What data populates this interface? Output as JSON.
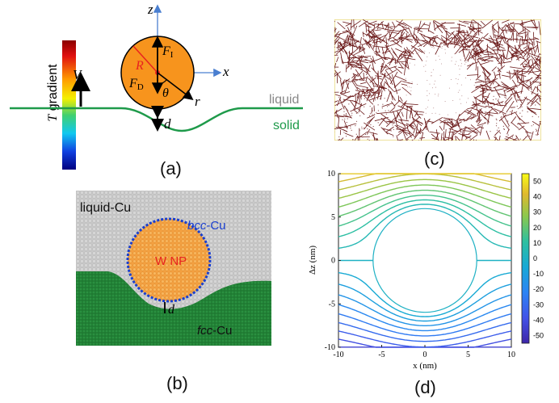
{
  "panel_a": {
    "caption": "(a)",
    "gradient_label": "T gradient",
    "gradient_label_italic": "T",
    "gradient_label_rest": " gradient",
    "velocity_label": "V",
    "z_label": "z",
    "x_label": "x",
    "r_label": "r",
    "R_label": "R",
    "theta_label": "θ",
    "FI_label": "F",
    "FI_sub": "I",
    "FD_label": "F",
    "FD_sub": "D",
    "d_label": "d",
    "liquid_label": "liquid",
    "solid_label": "solid",
    "colors": {
      "particle": "#f7941d",
      "interface": "#1e9a4a",
      "R_color": "#e8231f",
      "liquid": "#888888",
      "solid": "#1e9a4a",
      "axis": "#4a7fd0"
    }
  },
  "panel_b": {
    "caption": "(b)",
    "liquid_label": "liquid-Cu",
    "bcc_italic": "bcc",
    "bcc_rest": "-Cu",
    "fcc_italic": "fcc",
    "fcc_rest": "-Cu",
    "np_label": "W NP",
    "d_label": "d",
    "colors": {
      "liquid": "#c8c8c8",
      "solid": "#1f7a32",
      "np": "#f4a040",
      "np_label": "#e8231f",
      "bcc": "#1a3fcf"
    }
  },
  "panel_c": {
    "caption": "(c)",
    "colors": {
      "network": "#6b1a1a",
      "frame": "#e8d87a"
    }
  },
  "panel_d": {
    "caption": "(d)",
    "chart_data": {
      "type": "contour",
      "xlabel": "x (nm)",
      "ylabel": "Δz (nm)",
      "xlim": [
        -10,
        10
      ],
      "ylim": [
        -10,
        10
      ],
      "x_ticks": [
        -10,
        -5,
        0,
        5,
        10
      ],
      "y_ticks": [
        -10,
        -5,
        0,
        5,
        10
      ],
      "colorbar_ticks": [
        50,
        40,
        30,
        20,
        10,
        0,
        -10,
        -20,
        -30,
        -40,
        -50
      ],
      "colorbar_range": [
        -55,
        55
      ],
      "particle_radius_nm": 6,
      "contour_levels": [
        -55,
        -50,
        -45,
        -40,
        -35,
        -30,
        -25,
        -20,
        -15,
        -10,
        -5,
        0,
        5,
        10,
        15,
        20,
        25,
        30,
        35,
        40,
        45,
        50,
        55
      ],
      "colormap": "parula"
    }
  }
}
